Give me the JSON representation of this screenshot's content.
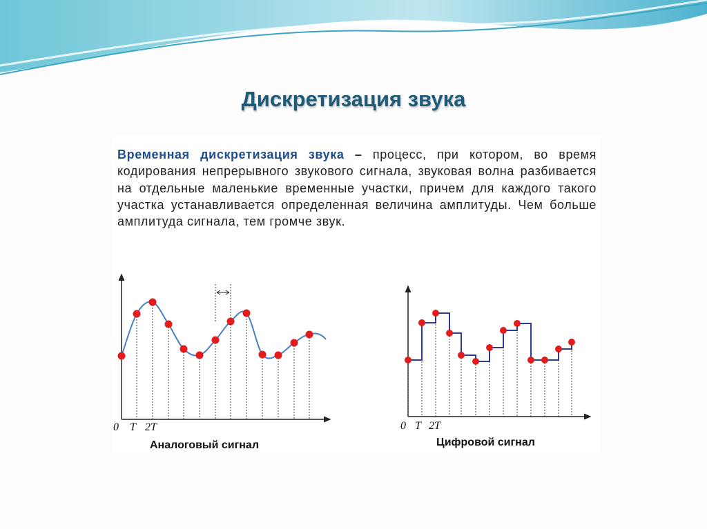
{
  "title": "Дискретизация звука",
  "definition": {
    "term": "Временная дискретизация звука",
    "dash": "–",
    "text": "процесс, при котором, во время кодирования непрерывного звукового сигнала, звуковая волна разбивается на отдельные маленькие временные участки, причем для каждого такого участка устанавливается определенная величина амплитуды. Чем больше амплитуда сигнала, тем громче звук."
  },
  "analog": {
    "origin": "0",
    "t1": "T",
    "t2": "2T",
    "caption": "Аналоговый сигнал"
  },
  "digital": {
    "origin": "0",
    "t1": "T",
    "t2": "2T",
    "caption": "Цифровой сигнал"
  }
}
